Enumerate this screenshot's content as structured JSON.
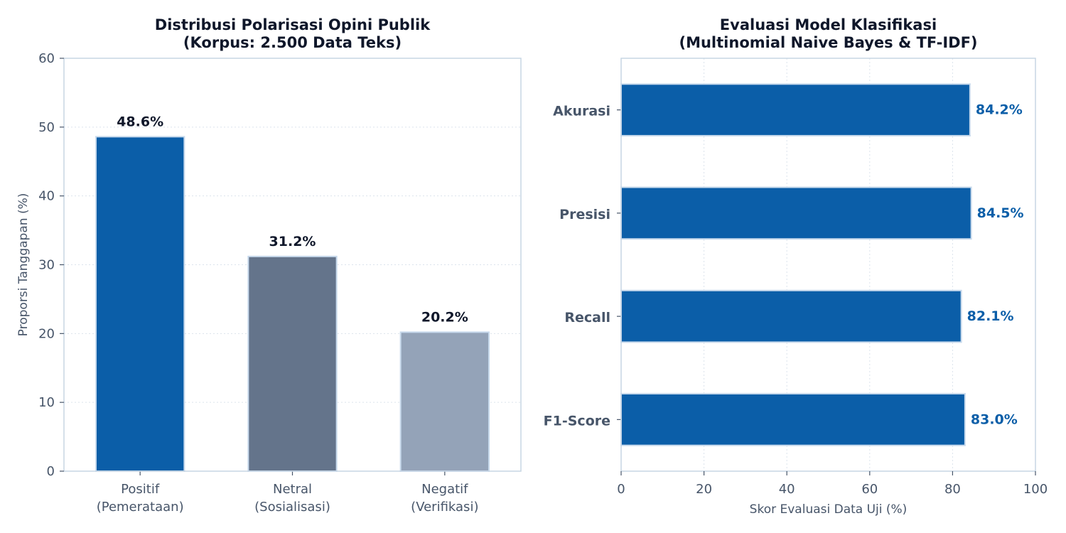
{
  "chart_data": [
    {
      "type": "bar",
      "title": [
        "Distribusi Polarisasi Opini Publik",
        "(Korpus: 2.500 Data Teks)"
      ],
      "categories": [
        [
          "Positif",
          "(Pemerataan)"
        ],
        [
          "Netral",
          "(Sosialisasi)"
        ],
        [
          "Negatif",
          "(Verifikasi)"
        ]
      ],
      "values": [
        48.6,
        31.2,
        20.2
      ],
      "data_labels": [
        "48.6%",
        "31.2%",
        "20.2%"
      ],
      "bar_colors": [
        "#0b5ea8",
        "#64748b",
        "#94a3b8"
      ],
      "xlabel": "",
      "ylabel": "Proporsi Tanggapan (%)",
      "ylim": [
        0,
        60
      ],
      "yticks": [
        0,
        10,
        20,
        30,
        40,
        50,
        60
      ],
      "grid": true
    },
    {
      "type": "bar",
      "orientation": "horizontal",
      "title": [
        "Evaluasi Model Klasifikasi",
        "(Multinomial Naive Bayes & TF-IDF)"
      ],
      "categories": [
        "Akurasi",
        "Presisi",
        "Recall",
        "F1-Score"
      ],
      "values": [
        84.2,
        84.5,
        82.1,
        83.0
      ],
      "data_labels": [
        "84.2%",
        "84.5%",
        "82.1%",
        "83.0%"
      ],
      "bar_color": "#0b5ea8",
      "label_color": "#0b5ea8",
      "xlabel": "Skor Evaluasi Data Uji (%)",
      "ylabel": "",
      "xlim": [
        0,
        100
      ],
      "xticks": [
        0,
        20,
        40,
        60,
        80,
        100
      ],
      "grid": true
    }
  ],
  "colors": {
    "axis": "#c7d5e3",
    "grid": "#dbe3ec",
    "text_dark": "#0f172a",
    "text_muted": "#475569",
    "bar_edge": "#c7d9ec"
  }
}
